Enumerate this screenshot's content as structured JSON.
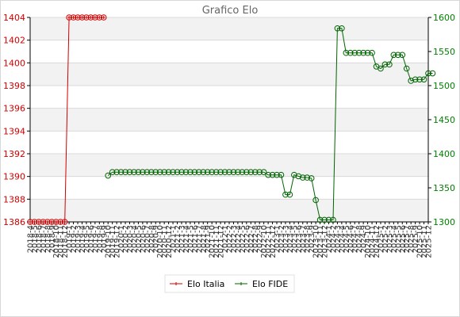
{
  "chart_data": {
    "type": "line",
    "title": "Grafico Elo",
    "legend_position": "bottom",
    "x_labels": [
      "2018-4",
      "2018-5",
      "2018-6",
      "2018-7",
      "2018-8",
      "2018-9",
      "2018-10",
      "2018-11",
      "2018-12",
      "2019-1",
      "2019-2",
      "2019-3",
      "2019-4",
      "2019-5",
      "2019-6",
      "2019-7",
      "2019-8",
      "2019-9",
      "2019-10",
      "2019-11",
      "2019-12",
      "2020-1",
      "2020-2",
      "2020-3",
      "2020-4",
      "2020-5",
      "2020-6",
      "2020-7",
      "2020-8",
      "2020-9",
      "2020-10",
      "2020-11",
      "2020-12",
      "2021-1",
      "2021-2",
      "2021-3",
      "2021-4",
      "2021-5",
      "2021-6",
      "2021-7",
      "2021-8",
      "2021-9",
      "2021-10",
      "2021-11",
      "2021-12",
      "2022-1",
      "2022-2",
      "2022-3",
      "2022-4",
      "2022-5",
      "2022-6",
      "2022-7",
      "2022-8",
      "2022-9",
      "2022-10",
      "2022-11",
      "2022-12",
      "2023-1",
      "2023-2",
      "2023-3",
      "2023-4",
      "2023-5",
      "2023-6",
      "2023-7",
      "2023-8",
      "2023-9",
      "2023-10",
      "2023-11",
      "2023-12",
      "2024-1",
      "2024-2",
      "2024-3",
      "2024-4",
      "2024-5",
      "2024-6",
      "2024-7",
      "2024-8",
      "2024-9",
      "2024-10",
      "2024-11",
      "2024-12",
      "2025-1",
      "2025-2",
      "2025-3",
      "2025-4",
      "2025-5",
      "2025-6",
      "2025-7",
      "2025-8",
      "2025-9",
      "2025-10",
      "2025-11",
      "2025-12"
    ],
    "y_left": {
      "min": 1386,
      "max": 1404,
      "ticks": [
        1386,
        1388,
        1390,
        1392,
        1394,
        1396,
        1398,
        1400,
        1402,
        1404
      ],
      "color": "#d00000"
    },
    "y_right": {
      "min": 1300,
      "max": 1600,
      "ticks": [
        1300,
        1350,
        1400,
        1450,
        1500,
        1550,
        1600
      ],
      "color": "#008000"
    },
    "grid": true,
    "series": [
      {
        "name": "Elo Italia",
        "axis": "left",
        "color": "#d00000",
        "values": [
          1386,
          1386,
          1386,
          1386,
          1386,
          1386,
          1386,
          1386,
          1386,
          1404,
          1404,
          1404,
          1404,
          1404,
          1404,
          1404,
          1404,
          1404,
          null,
          null,
          null,
          null,
          null,
          null,
          null,
          null,
          null,
          null,
          null,
          null,
          null,
          null,
          null,
          null,
          null,
          null,
          null,
          null,
          null,
          null,
          null,
          null,
          null,
          null,
          null,
          null,
          null,
          null,
          null,
          null,
          null,
          null,
          null,
          null,
          null,
          null,
          null,
          null,
          null,
          null,
          null,
          null,
          null,
          null,
          null,
          null,
          null,
          null,
          null,
          null,
          null,
          null,
          null,
          null,
          null,
          null,
          null,
          null,
          null,
          null,
          null,
          null,
          null,
          null,
          null,
          null,
          null,
          null,
          null,
          null,
          null,
          null,
          null
        ]
      },
      {
        "name": "Elo FIDE",
        "axis": "right",
        "color": "#006400",
        "values": [
          null,
          null,
          null,
          null,
          null,
          null,
          null,
          null,
          null,
          null,
          null,
          null,
          null,
          null,
          null,
          null,
          null,
          null,
          1368,
          1373,
          1373,
          1373,
          1373,
          1373,
          1373,
          1373,
          1373,
          1373,
          1373,
          1373,
          1373,
          1373,
          1373,
          1373,
          1373,
          1373,
          1373,
          1373,
          1373,
          1373,
          1373,
          1373,
          1373,
          1373,
          1373,
          1373,
          1373,
          1373,
          1373,
          1373,
          1373,
          1373,
          1373,
          1373,
          1373,
          1369,
          1369,
          1369,
          1369,
          1340,
          1340,
          1369,
          1367,
          1365,
          1365,
          1364,
          1332,
          1303,
          1303,
          1303,
          1303,
          1584,
          1584,
          1548,
          1548,
          1548,
          1548,
          1548,
          1548,
          1548,
          1528,
          1525,
          1531,
          1531,
          1545,
          1545,
          1545,
          1525,
          1507,
          1509,
          1509,
          1509,
          1518,
          1518
        ]
      }
    ]
  }
}
